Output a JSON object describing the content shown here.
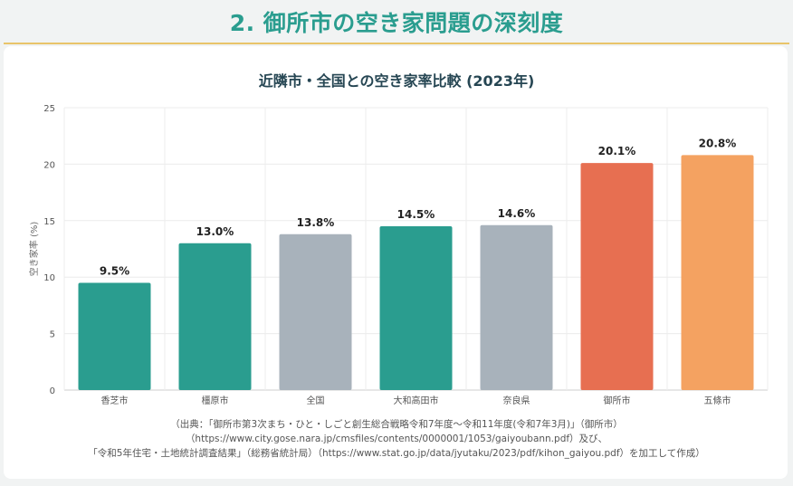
{
  "header": {
    "title": "2. 御所市の空き家問題の深刻度"
  },
  "chart_data": {
    "type": "bar",
    "title": "近隣市・全国との空き家率比較 (2023年)",
    "ylabel": "空き家率 (%)",
    "xlabel": "",
    "ylim": [
      0,
      25
    ],
    "yticks": [
      0,
      5,
      10,
      15,
      20,
      25
    ],
    "grid": true,
    "categories": [
      "香芝市",
      "橿原市",
      "全国",
      "大和高田市",
      "奈良県",
      "御所市",
      "五條市"
    ],
    "values": [
      9.5,
      13.0,
      13.8,
      14.5,
      14.6,
      20.1,
      20.8
    ],
    "value_labels": [
      "9.5%",
      "13.0%",
      "13.8%",
      "14.5%",
      "14.6%",
      "20.1%",
      "20.8%"
    ],
    "colors": [
      "#2a9d8f",
      "#2a9d8f",
      "#a8b2bb",
      "#2a9d8f",
      "#a8b2bb",
      "#e76f51",
      "#f4a261"
    ]
  },
  "source": {
    "line1": "（出典：「御所市第3次まち・ひと・しごと創生総合戦略令和7年度～令和11年度(令和7年3月)」（御所市）",
    "line2": "（https://www.city.gose.nara.jp/cmsfiles/contents/0000001/1053/gaiyoubann.pdf）及び、",
    "line3": "「令和5年住宅・土地統計調査結果」（総務省統計局）（https://www.stat.go.jp/data/jyutaku/2023/pdf/kihon_gaiyou.pdf）を加工して作成）"
  }
}
